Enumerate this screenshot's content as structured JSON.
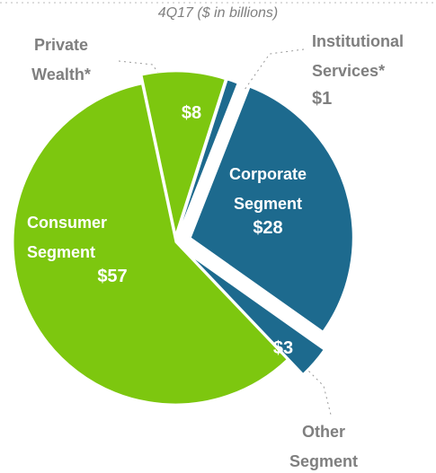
{
  "chart_data": {
    "type": "pie",
    "title": "4Q17 ($ in billions)",
    "categories": [
      "Private Wealth*",
      "Institutional Services*",
      "Corporate Segment",
      "Other Segment",
      "Consumer Segment"
    ],
    "values": [
      8,
      1,
      28,
      3,
      57
    ],
    "value_labels": [
      "$8",
      "$1",
      "$28",
      "$3",
      "$57"
    ],
    "colors": [
      "#7dc70f",
      "#1d6a8e",
      "#1d6a8e",
      "#1d6a8e",
      "#7dc70f"
    ]
  }
}
